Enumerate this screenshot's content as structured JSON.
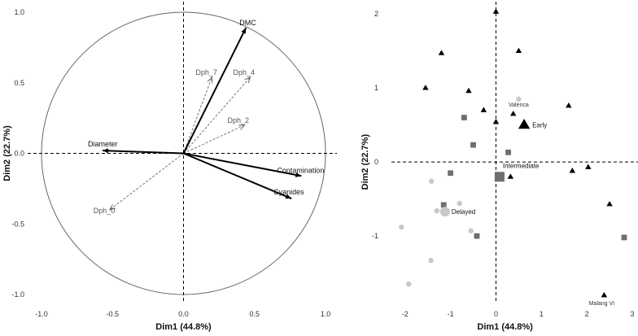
{
  "chart_data": [
    {
      "type": "scatter",
      "subtype": "pca-correlation-circle",
      "xlabel": "Dim1 (44.8%)",
      "ylabel": "Dim2 (22.7%)",
      "xlim": [
        -1.0,
        1.0
      ],
      "ylim": [
        -1.0,
        1.0
      ],
      "xticks": [
        "-1.0",
        "-0.5",
        "0.0",
        "0.5",
        "1.0"
      ],
      "yticks": [
        "-1.0",
        "-0.5",
        "0.0",
        "0.5",
        "1.0"
      ],
      "grid": false,
      "reference_lines": "dashed at x=0 and y=0",
      "unit_circle": true,
      "active_variables": [
        {
          "name": "DMC",
          "x": 0.44,
          "y": 0.89,
          "color": "#000000"
        },
        {
          "name": "Contamination",
          "x": 0.83,
          "y": -0.16,
          "color": "#000000"
        },
        {
          "name": "Cyanides",
          "x": 0.76,
          "y": -0.32,
          "color": "#000000"
        },
        {
          "name": "Diameter",
          "x": -0.57,
          "y": 0.02,
          "color": "#000000"
        }
      ],
      "supplementary_variables": [
        {
          "name": "Dph_7",
          "x": 0.2,
          "y": 0.54,
          "color": "#666666"
        },
        {
          "name": "Dph_4",
          "x": 0.47,
          "y": 0.54,
          "color": "#666666"
        },
        {
          "name": "Dph_2",
          "x": 0.43,
          "y": 0.2,
          "color": "#666666"
        },
        {
          "name": "Dph_0",
          "x": -0.52,
          "y": -0.4,
          "color": "#666666"
        }
      ]
    },
    {
      "type": "scatter",
      "subtype": "pca-individuals",
      "xlabel": "Dim1 (44.8%)",
      "ylabel": "Dim2 (22.7%)",
      "xlim": [
        -2.3,
        3.0
      ],
      "ylim": [
        -1.9,
        2.1
      ],
      "xticks": [
        "-2",
        "-1",
        "0",
        "1",
        "2",
        "3"
      ],
      "yticks": [
        "-1",
        "0",
        "1",
        "2"
      ],
      "grid": false,
      "reference_lines": "dashed at x=0 and y=0",
      "groups": [
        {
          "name": "Early",
          "shape": "triangle",
          "color": "#000000"
        },
        {
          "name": "Intermediate",
          "shape": "square",
          "color": "#6e6e6e"
        },
        {
          "name": "Delayed",
          "shape": "circle",
          "color": "#c8c8c8"
        }
      ],
      "points": [
        {
          "group": "Early",
          "x": 0.0,
          "y": 2.03
        },
        {
          "group": "Early",
          "x": -1.2,
          "y": 1.47
        },
        {
          "group": "Early",
          "x": 0.5,
          "y": 1.5
        },
        {
          "group": "Early",
          "x": -1.55,
          "y": 1.0
        },
        {
          "group": "Early",
          "x": -0.6,
          "y": 0.96
        },
        {
          "group": "Early",
          "x": 1.6,
          "y": 0.76
        },
        {
          "group": "Early",
          "x": -0.27,
          "y": 0.7
        },
        {
          "group": "Early",
          "x": 0.38,
          "y": 0.65
        },
        {
          "group": "Early",
          "x": 0.0,
          "y": 0.54
        },
        {
          "group": "Early",
          "x": 0.32,
          "y": -0.2
        },
        {
          "group": "Early",
          "x": 1.68,
          "y": -0.12
        },
        {
          "group": "Early",
          "x": 2.03,
          "y": -0.07
        },
        {
          "group": "Early",
          "x": 2.5,
          "y": -0.57
        },
        {
          "group": "Early",
          "x": 2.38,
          "y": -1.8,
          "label": "Malang VI"
        },
        {
          "group": "Intermediate",
          "x": -0.7,
          "y": 0.6
        },
        {
          "group": "Intermediate",
          "x": -0.5,
          "y": 0.23
        },
        {
          "group": "Intermediate",
          "x": 0.27,
          "y": 0.13
        },
        {
          "group": "Intermediate",
          "x": -1.0,
          "y": -0.15
        },
        {
          "group": "Intermediate",
          "x": -1.15,
          "y": -0.58
        },
        {
          "group": "Intermediate",
          "x": -0.42,
          "y": -1.0
        },
        {
          "group": "Intermediate",
          "x": 2.82,
          "y": -1.02
        },
        {
          "group": "Delayed",
          "x": 0.5,
          "y": 0.85,
          "label": "Valenca"
        },
        {
          "group": "Delayed",
          "x": -1.42,
          "y": -0.26
        },
        {
          "group": "Delayed",
          "x": -0.8,
          "y": -0.56
        },
        {
          "group": "Delayed",
          "x": -1.3,
          "y": -0.66
        },
        {
          "group": "Delayed",
          "x": -2.08,
          "y": -0.88
        },
        {
          "group": "Delayed",
          "x": -0.55,
          "y": -0.93
        },
        {
          "group": "Delayed",
          "x": -1.43,
          "y": -1.33
        },
        {
          "group": "Delayed",
          "x": -1.92,
          "y": -1.65
        }
      ],
      "centroids": [
        {
          "group": "Early",
          "name": "Early",
          "x": 0.62,
          "y": 0.5
        },
        {
          "group": "Intermediate",
          "name": "Intermediate",
          "x": 0.08,
          "y": -0.2
        },
        {
          "group": "Delayed",
          "name": "Delayed",
          "x": -1.12,
          "y": -0.67
        }
      ]
    }
  ]
}
